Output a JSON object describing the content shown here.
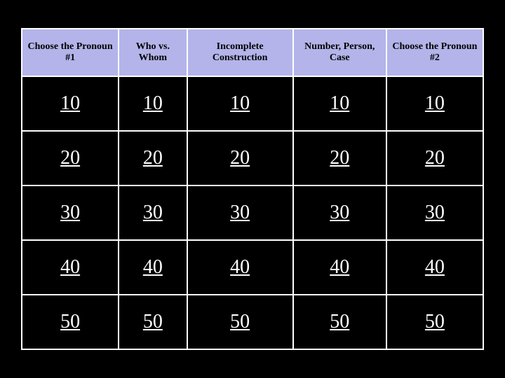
{
  "board": {
    "header_bg": "#b4b4ea",
    "header_fg": "#000000",
    "cell_bg": "#000000",
    "cell_fg": "#ffffff",
    "border_color": "#ffffff",
    "categories": [
      "Choose the Pronoun #1",
      "Who vs. Whom",
      "Incomplete Construction",
      "Number, Person, Case",
      "Choose the Pronoun #2"
    ],
    "point_values": [
      10,
      20,
      30,
      40,
      50
    ]
  }
}
